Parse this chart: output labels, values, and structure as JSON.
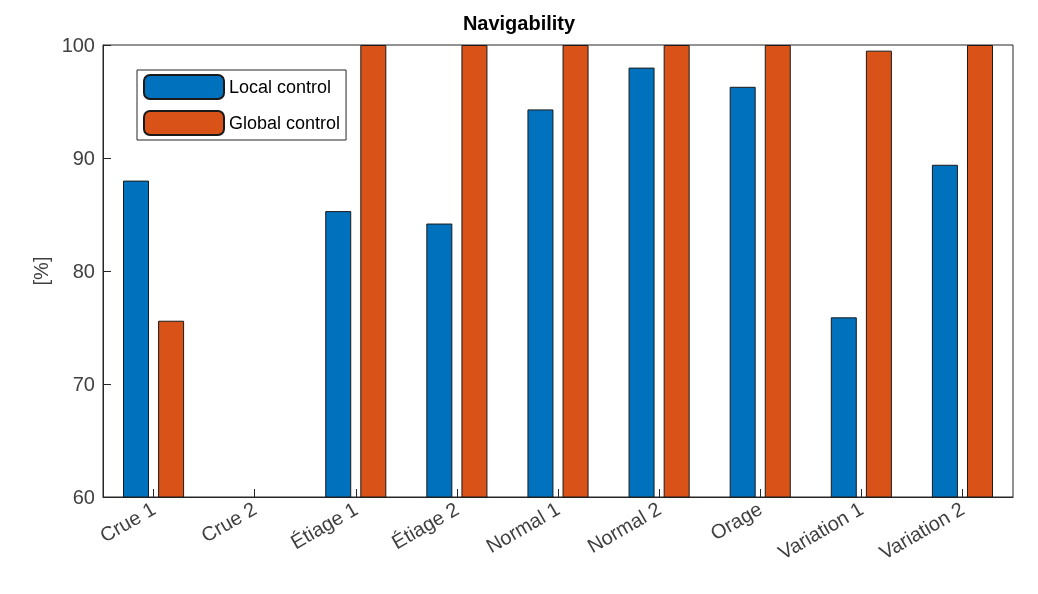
{
  "chart_data": {
    "type": "bar",
    "title": "Navigability",
    "ylabel": "[%]",
    "categories": [
      "Crue 1",
      "Crue 2",
      "Étiage 1",
      "Étiage 2",
      "Normal 1",
      "Normal 2",
      "Orage",
      "Variation 1",
      "Variation 2"
    ],
    "series": [
      {
        "name": "Local control",
        "color": "#0072bd",
        "values": [
          88.0,
          null,
          85.3,
          84.2,
          94.3,
          98.0,
          96.3,
          75.9,
          89.4
        ]
      },
      {
        "name": "Global control",
        "color": "#d95319",
        "values": [
          75.6,
          null,
          100,
          100,
          100,
          100,
          100,
          99.5,
          100
        ]
      }
    ],
    "ylim": [
      60,
      100
    ],
    "yticks": [
      60,
      70,
      80,
      90,
      100
    ],
    "grid": false,
    "legend": "top left"
  }
}
